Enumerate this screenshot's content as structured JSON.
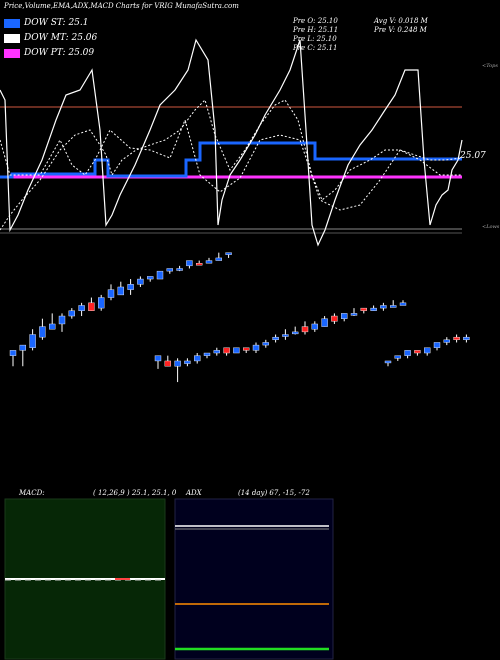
{
  "header": {
    "title": "Price,Volume,EMA,ADX,MACD Charts for VRIG MunafaSutra.com"
  },
  "legend": [
    {
      "label": "DOW ST: 25.1",
      "color": "#1a66ff"
    },
    {
      "label": "DOW MT: 25.06",
      "color": "#ffffff"
    },
    {
      "label": "DOW PT: 25.09",
      "color": "#ff33ff"
    }
  ],
  "quote": {
    "open": "Pre   O: 25.10",
    "high": "Pre   H: 25.11",
    "low": "Pre   L: 25.10",
    "close": "Pre   C: 25.11",
    "avg_vol": "Avg V: 0.018  M",
    "pre_vol": "Pre   V: 0.248  M"
  },
  "labels": {
    "tops": "<Tops",
    "lows": "<Lows",
    "current": "25.07"
  },
  "macd_panel": {
    "name": "MACD:",
    "params": "( 12,26,9 ) 25.1,  25.1,  0"
  },
  "adx_panel": {
    "name": "ADX",
    "params": "(14  day) 67,  -15,  -72"
  },
  "colors": {
    "st": "#1a66ff",
    "mt": "#ffffff",
    "pt": "#ff33ff",
    "up_candle": "#1a66ff",
    "down_candle": "#ff2222",
    "resistance": "#8b3a2a",
    "macd_bg": "#062706",
    "adx_bg": "#00001e"
  },
  "chart_data": {
    "type": "candlestick",
    "candles": [
      {
        "o": 25.053,
        "h": 25.055,
        "l": 25.049,
        "c": 25.055,
        "d": "up"
      },
      {
        "o": 25.055,
        "h": 25.057,
        "l": 25.049,
        "c": 25.057,
        "d": "up"
      },
      {
        "o": 25.056,
        "h": 25.063,
        "l": 25.055,
        "c": 25.061,
        "d": "up"
      },
      {
        "o": 25.06,
        "h": 25.067,
        "l": 25.059,
        "c": 25.064,
        "d": "up"
      },
      {
        "o": 25.063,
        "h": 25.069,
        "l": 25.063,
        "c": 25.065,
        "d": "up"
      },
      {
        "o": 25.065,
        "h": 25.069,
        "l": 25.062,
        "c": 25.068,
        "d": "up"
      },
      {
        "o": 25.068,
        "h": 25.071,
        "l": 25.067,
        "c": 25.07,
        "d": "up"
      },
      {
        "o": 25.07,
        "h": 25.073,
        "l": 25.068,
        "c": 25.072,
        "d": "up"
      },
      {
        "o": 25.073,
        "h": 25.075,
        "l": 25.07,
        "c": 25.07,
        "d": "down"
      },
      {
        "o": 25.071,
        "h": 25.076,
        "l": 25.07,
        "c": 25.075,
        "d": "up"
      },
      {
        "o": 25.075,
        "h": 25.08,
        "l": 25.074,
        "c": 25.078,
        "d": "up"
      },
      {
        "o": 25.076,
        "h": 25.081,
        "l": 25.076,
        "c": 25.079,
        "d": "up"
      },
      {
        "o": 25.078,
        "h": 25.082,
        "l": 25.076,
        "c": 25.08,
        "d": "up"
      },
      {
        "o": 25.08,
        "h": 25.083,
        "l": 25.079,
        "c": 25.082,
        "d": "up"
      },
      {
        "o": 25.082,
        "h": 25.083,
        "l": 25.081,
        "c": 25.083,
        "d": "up"
      },
      {
        "o": 25.082,
        "h": 25.085,
        "l": 25.082,
        "c": 25.085,
        "d": "up"
      },
      {
        "o": 25.085,
        "h": 25.086,
        "l": 25.084,
        "c": 25.086,
        "d": "up"
      },
      {
        "o": 25.086,
        "h": 25.087,
        "l": 25.085,
        "c": 25.086,
        "d": "up"
      },
      {
        "o": 25.087,
        "h": 25.089,
        "l": 25.086,
        "c": 25.089,
        "d": "up"
      },
      {
        "o": 25.088,
        "h": 25.089,
        "l": 25.088,
        "c": 25.088,
        "d": "down"
      },
      {
        "o": 25.088,
        "h": 25.09,
        "l": 25.088,
        "c": 25.089,
        "d": "up"
      },
      {
        "o": 25.089,
        "h": 25.092,
        "l": 25.089,
        "c": 25.09,
        "d": "up"
      },
      {
        "o": 25.092,
        "h": 25.092,
        "l": 25.09,
        "c": 25.092,
        "d": "up"
      },
      {
        "o": 25.053,
        "h": 25.053,
        "l": 25.048,
        "c": 25.051,
        "d": "up"
      },
      {
        "o": 25.051,
        "h": 25.053,
        "l": 25.049,
        "c": 25.049,
        "d": "down"
      },
      {
        "o": 25.051,
        "h": 25.052,
        "l": 25.043,
        "c": 25.049,
        "d": "up"
      },
      {
        "o": 25.05,
        "h": 25.052,
        "l": 25.049,
        "c": 25.051,
        "d": "up"
      },
      {
        "o": 25.051,
        "h": 25.054,
        "l": 25.05,
        "c": 25.053,
        "d": "up"
      },
      {
        "o": 25.053,
        "h": 25.054,
        "l": 25.052,
        "c": 25.054,
        "d": "up"
      },
      {
        "o": 25.054,
        "h": 25.056,
        "l": 25.053,
        "c": 25.055,
        "d": "up"
      },
      {
        "o": 25.056,
        "h": 25.056,
        "l": 25.053,
        "c": 25.054,
        "d": "down"
      },
      {
        "o": 25.054,
        "h": 25.056,
        "l": 25.054,
        "c": 25.056,
        "d": "up"
      },
      {
        "o": 25.056,
        "h": 25.056,
        "l": 25.054,
        "c": 25.055,
        "d": "down"
      },
      {
        "o": 25.055,
        "h": 25.058,
        "l": 25.054,
        "c": 25.057,
        "d": "up"
      },
      {
        "o": 25.057,
        "h": 25.059,
        "l": 25.056,
        "c": 25.058,
        "d": "up"
      },
      {
        "o": 25.059,
        "h": 25.061,
        "l": 25.058,
        "c": 25.06,
        "d": "up"
      },
      {
        "o": 25.061,
        "h": 25.063,
        "l": 25.059,
        "c": 25.061,
        "d": "up"
      },
      {
        "o": 25.062,
        "h": 25.064,
        "l": 25.061,
        "c": 25.062,
        "d": "up"
      },
      {
        "o": 25.064,
        "h": 25.066,
        "l": 25.061,
        "c": 25.062,
        "d": "down"
      },
      {
        "o": 25.063,
        "h": 25.066,
        "l": 25.062,
        "c": 25.065,
        "d": "up"
      },
      {
        "o": 25.064,
        "h": 25.068,
        "l": 25.064,
        "c": 25.067,
        "d": "up"
      },
      {
        "o": 25.068,
        "h": 25.069,
        "l": 25.065,
        "c": 25.066,
        "d": "down"
      },
      {
        "o": 25.067,
        "h": 25.069,
        "l": 25.066,
        "c": 25.069,
        "d": "up"
      },
      {
        "o": 25.069,
        "h": 25.071,
        "l": 25.068,
        "c": 25.069,
        "d": "up"
      },
      {
        "o": 25.071,
        "h": 25.071,
        "l": 25.069,
        "c": 25.07,
        "d": "down"
      },
      {
        "o": 25.07,
        "h": 25.072,
        "l": 25.07,
        "c": 25.071,
        "d": "up"
      },
      {
        "o": 25.071,
        "h": 25.073,
        "l": 25.07,
        "c": 25.072,
        "d": "up"
      },
      {
        "o": 25.072,
        "h": 25.074,
        "l": 25.072,
        "c": 25.072,
        "d": "up"
      },
      {
        "o": 25.072,
        "h": 25.074,
        "l": 25.072,
        "c": 25.073,
        "d": "up"
      },
      {
        "o": 25.051,
        "h": 25.051,
        "l": 25.049,
        "c": 25.051,
        "d": "up"
      },
      {
        "o": 25.052,
        "h": 25.053,
        "l": 25.051,
        "c": 25.053,
        "d": "up"
      },
      {
        "o": 25.053,
        "h": 25.055,
        "l": 25.052,
        "c": 25.055,
        "d": "up"
      },
      {
        "o": 25.055,
        "h": 25.055,
        "l": 25.053,
        "c": 25.054,
        "d": "down"
      },
      {
        "o": 25.054,
        "h": 25.056,
        "l": 25.053,
        "c": 25.056,
        "d": "up"
      },
      {
        "o": 25.056,
        "h": 25.058,
        "l": 25.055,
        "c": 25.058,
        "d": "up"
      },
      {
        "o": 25.058,
        "h": 25.06,
        "l": 25.057,
        "c": 25.059,
        "d": "up"
      },
      {
        "o": 25.06,
        "h": 25.061,
        "l": 25.058,
        "c": 25.059,
        "d": "down"
      },
      {
        "o": 25.059,
        "h": 25.061,
        "l": 25.058,
        "c": 25.06,
        "d": "up"
      }
    ],
    "series": [
      {
        "name": "DOW ST",
        "values": [
          25.1
        ]
      },
      {
        "name": "DOW MT",
        "values": [
          25.06
        ]
      },
      {
        "name": "DOW PT",
        "values": [
          25.09
        ]
      }
    ]
  }
}
